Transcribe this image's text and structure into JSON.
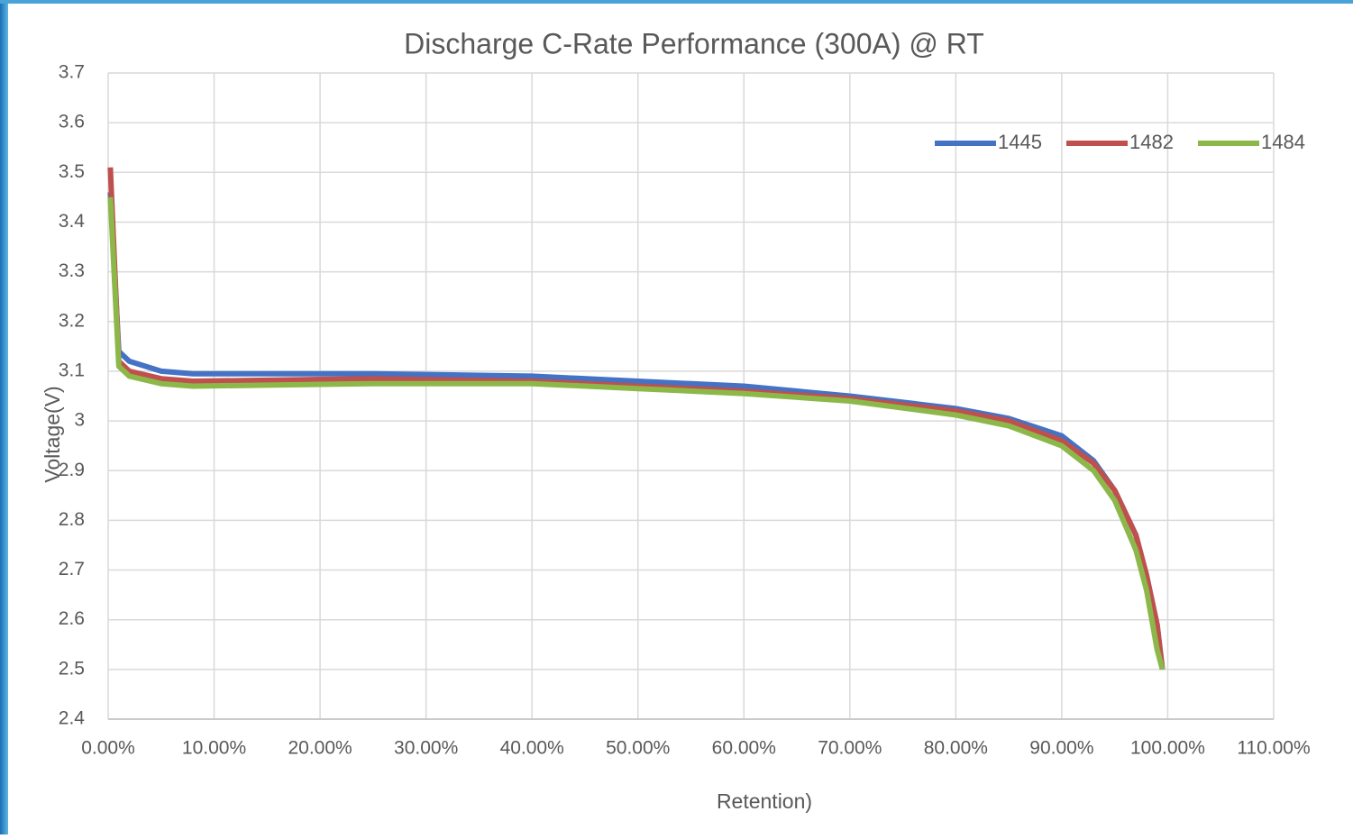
{
  "chart_data": {
    "type": "line",
    "title": "Discharge C-Rate Performance (300A) @ RT",
    "x_label": "Retention)",
    "y_label": "Voltage(V)",
    "x": [
      0.2,
      1,
      2,
      5,
      8,
      25,
      40,
      50,
      60,
      70,
      80,
      85,
      90,
      93,
      95,
      97,
      98,
      99,
      99.5
    ],
    "series": [
      {
        "name": "1445",
        "color": "#4472c4",
        "values": [
          3.46,
          3.14,
          3.12,
          3.1,
          3.095,
          3.095,
          3.09,
          3.08,
          3.07,
          3.05,
          3.025,
          3.005,
          2.97,
          2.92,
          2.86,
          2.77,
          2.69,
          2.59,
          2.5
        ]
      },
      {
        "name": "1482",
        "color": "#c0504d",
        "values": [
          3.51,
          3.12,
          3.1,
          3.085,
          3.08,
          3.085,
          3.08,
          3.07,
          3.06,
          3.045,
          3.02,
          3.0,
          2.96,
          2.915,
          2.86,
          2.77,
          2.69,
          2.59,
          2.5
        ]
      },
      {
        "name": "1484",
        "color": "#8cb84a",
        "values": [
          3.45,
          3.11,
          3.09,
          3.075,
          3.07,
          3.075,
          3.075,
          3.065,
          3.055,
          3.04,
          3.012,
          2.99,
          2.95,
          2.9,
          2.84,
          2.74,
          2.66,
          2.54,
          2.5
        ]
      }
    ],
    "xlim": [
      0,
      110
    ],
    "xticks": [
      {
        "value": 0,
        "label": "0.00%"
      },
      {
        "value": 10,
        "label": "10.00%"
      },
      {
        "value": 20,
        "label": "20.00%"
      },
      {
        "value": 30,
        "label": "30.00%"
      },
      {
        "value": 40,
        "label": "40.00%"
      },
      {
        "value": 50,
        "label": "50.00%"
      },
      {
        "value": 60,
        "label": "60.00%"
      },
      {
        "value": 70,
        "label": "70.00%"
      },
      {
        "value": 80,
        "label": "80.00%"
      },
      {
        "value": 90,
        "label": "90.00%"
      },
      {
        "value": 100,
        "label": "100.00%"
      },
      {
        "value": 110,
        "label": "110.00%"
      }
    ],
    "ylim": [
      2.4,
      3.7
    ],
    "yticks": [
      2.4,
      2.5,
      2.6,
      2.7,
      2.8,
      2.9,
      3,
      3.1,
      3.2,
      3.3,
      3.4,
      3.5,
      3.6,
      3.7
    ],
    "grid": true,
    "legend": "top-right"
  }
}
